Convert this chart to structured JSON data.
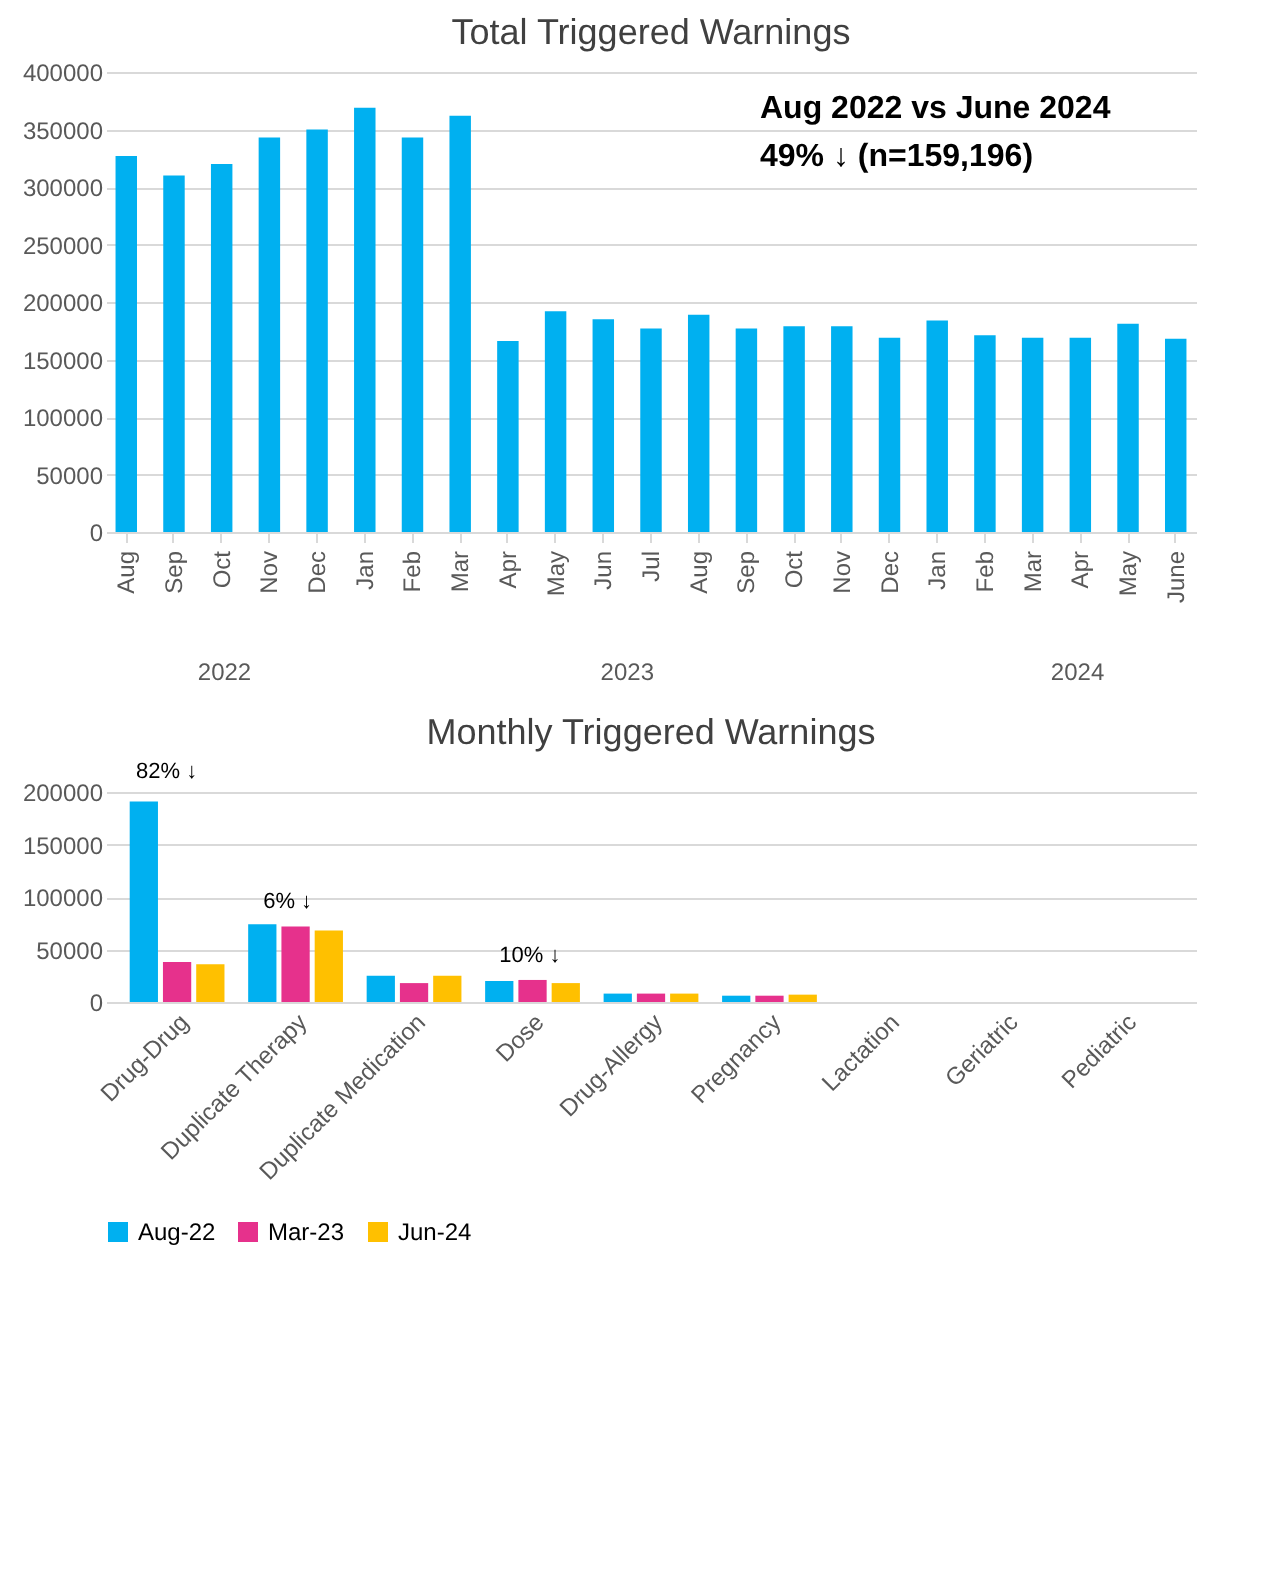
{
  "chart_data": [
    {
      "type": "bar",
      "title": "Total Triggered Warnings",
      "categories": [
        "Aug",
        "Sep",
        "Oct",
        "Nov",
        "Dec",
        "Jan",
        "Feb",
        "Mar",
        "Apr",
        "May",
        "Jun",
        "Jul",
        "Aug",
        "Sep",
        "Oct",
        "Nov",
        "Dec",
        "Jan",
        "Feb",
        "Mar",
        "Apr",
        "May",
        "June"
      ],
      "values": [
        327000,
        310000,
        320000,
        343000,
        350000,
        369000,
        343000,
        362000,
        166000,
        192000,
        185000,
        177000,
        189000,
        177000,
        179000,
        179000,
        169000,
        184000,
        171000,
        169000,
        169000,
        181000,
        168000
      ],
      "color": "#00b0f0",
      "ylim": [
        0,
        400000
      ],
      "yticks": [
        0,
        50000,
        100000,
        150000,
        200000,
        250000,
        300000,
        350000,
        400000
      ],
      "grid": "y",
      "annotations": [
        "Aug 2022 vs June 2024",
        "49% ↓ (n=159,196)",
        "2022",
        "2023",
        "2024"
      ]
    },
    {
      "type": "bar",
      "title": "Monthly Triggered Warnings",
      "categories": [
        "Drug-Drug",
        "Duplicate Therapy",
        "Duplicate Medication",
        "Dose",
        "Drug-Allergy",
        "Pregnancy",
        "Lactation",
        "Geriatric",
        "Pediatric"
      ],
      "series": [
        {
          "name": "Aug-22",
          "color": "#00b0f0",
          "values": [
            191000,
            74000,
            25000,
            20000,
            8000,
            6000,
            0,
            0,
            0
          ]
        },
        {
          "name": "Mar-23",
          "color": "#e6318c",
          "values": [
            38000,
            72000,
            18000,
            21000,
            8000,
            6000,
            0,
            0,
            0
          ]
        },
        {
          "name": "Jun-24",
          "color": "#ffc000",
          "values": [
            36000,
            68000,
            25000,
            18000,
            8000,
            7000,
            0,
            0,
            0
          ]
        }
      ],
      "ylim": [
        0,
        200000
      ],
      "yticks": [
        0,
        50000,
        100000,
        150000,
        200000
      ],
      "grid": "y",
      "legend": "bottom",
      "annotations": [
        "82% ↓",
        "6% ↓",
        "10% ↓"
      ]
    }
  ]
}
